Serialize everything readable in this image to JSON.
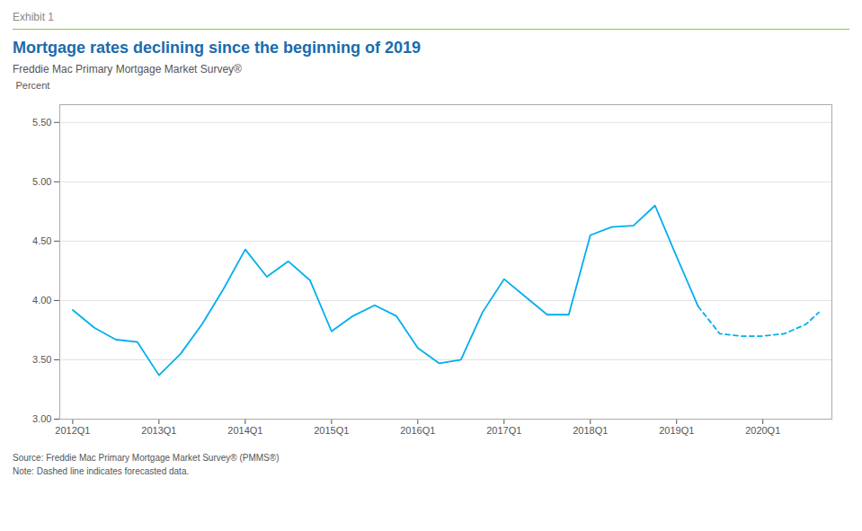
{
  "chart_data": {
    "type": "line",
    "exhibit": "Exhibit 1",
    "title": "Mortgage rates declining since the beginning of 2019",
    "subtitle": "Freddie Mac Primary Mortgage Market Survey®",
    "ylabel": "Percent",
    "source": "Source: Freddie Mac Primary Mortgage Market Survey® (PMMS®)",
    "note": "Note: Dashed line indicates forecasted data.",
    "xlim": [
      2011.85,
      2020.8
    ],
    "xticks": [
      {
        "value": 2012.0,
        "label": "2012Q1"
      },
      {
        "value": 2013.0,
        "label": "2013Q1"
      },
      {
        "value": 2014.0,
        "label": "2014Q1"
      },
      {
        "value": 2015.0,
        "label": "2015Q1"
      },
      {
        "value": 2016.0,
        "label": "2016Q1"
      },
      {
        "value": 2017.0,
        "label": "2017Q1"
      },
      {
        "value": 2018.0,
        "label": "2018Q1"
      },
      {
        "value": 2019.0,
        "label": "2019Q1"
      },
      {
        "value": 2020.0,
        "label": "2020Q1"
      }
    ],
    "ylim": [
      3.0,
      5.65
    ],
    "yticks": [
      {
        "value": 3.0,
        "label": "3.00"
      },
      {
        "value": 3.5,
        "label": "3.50"
      },
      {
        "value": 4.0,
        "label": "4.00"
      },
      {
        "value": 4.5,
        "label": "4.50"
      },
      {
        "value": 5.0,
        "label": "5.00"
      },
      {
        "value": 5.5,
        "label": "5.50"
      }
    ],
    "grid": true,
    "series": [
      {
        "color": "#00AEEF",
        "line_style": "solid",
        "x": [
          2012.0,
          2012.25,
          2012.5,
          2012.75,
          2013.0,
          2013.25,
          2013.5,
          2013.75,
          2014.0,
          2014.25,
          2014.5,
          2014.75,
          2015.0,
          2015.25,
          2015.5,
          2015.75,
          2016.0,
          2016.25,
          2016.5,
          2016.75,
          2017.0,
          2017.25,
          2017.5,
          2017.75,
          2018.0,
          2018.25,
          2018.5,
          2018.75,
          2019.0,
          2019.25
        ],
        "values": [
          3.92,
          3.77,
          3.67,
          3.65,
          3.37,
          3.55,
          3.8,
          4.1,
          4.43,
          4.2,
          4.33,
          4.17,
          3.74,
          3.87,
          3.96,
          3.87,
          3.6,
          3.47,
          3.5,
          3.9,
          4.18,
          4.03,
          3.88,
          3.88,
          4.55,
          4.62,
          4.63,
          4.8,
          4.37,
          3.95
        ]
      },
      {
        "color": "#00AEEF",
        "line_style": "dashed",
        "x": [
          2019.25,
          2019.5,
          2019.75,
          2020.0,
          2020.25,
          2020.5,
          2020.65
        ],
        "values": [
          3.95,
          3.72,
          3.7,
          3.7,
          3.72,
          3.8,
          3.9
        ]
      }
    ]
  }
}
